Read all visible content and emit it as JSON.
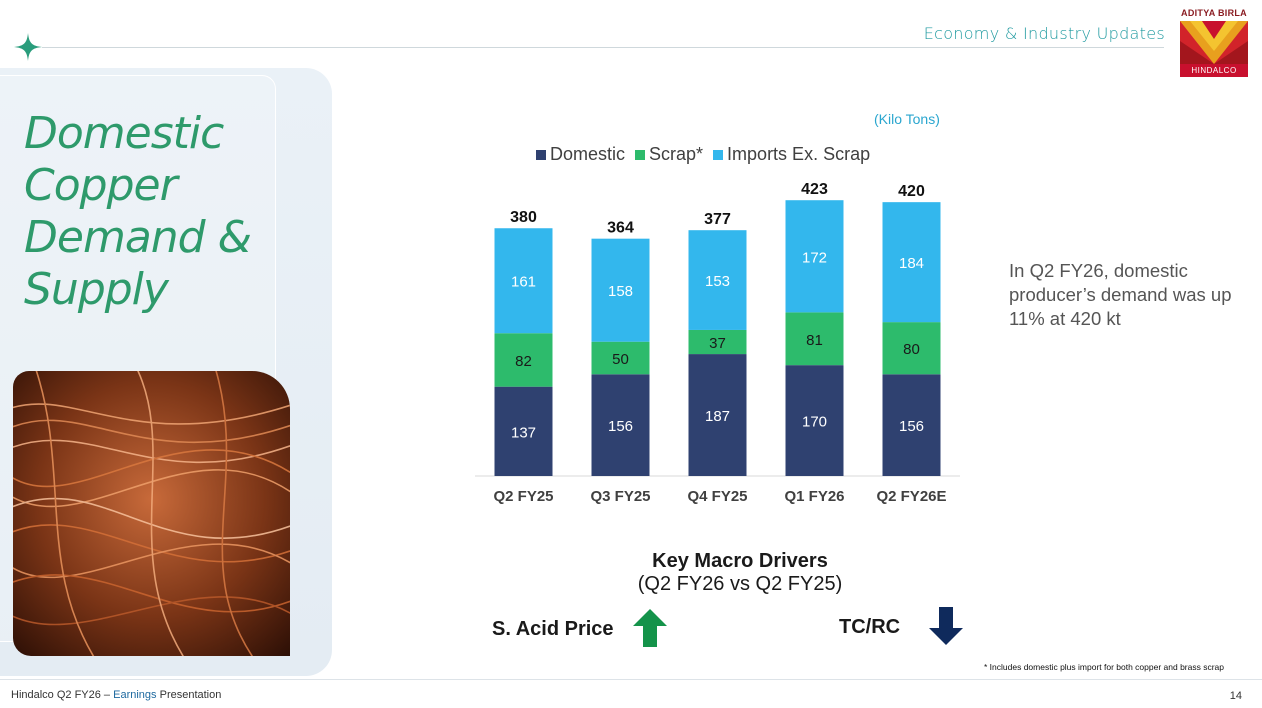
{
  "header": {
    "section_title": "Economy & Industry Updates",
    "logo_top": "ADITYA BIRLA",
    "logo_bottom": "HINDALCO"
  },
  "slide": {
    "title_lines": [
      "Domestic",
      "Copper",
      "Demand &",
      "Supply"
    ],
    "callout": "In Q2 FY26, domestic producer’s demand was up 11% at 420 kt"
  },
  "chart_data": {
    "type": "bar",
    "stacked": true,
    "unit_label": "(Kilo Tons)",
    "categories": [
      "Q2 FY25",
      "Q3 FY25",
      "Q4 FY25",
      "Q1 FY26",
      "Q2 FY26E"
    ],
    "series": [
      {
        "name": "Domestic",
        "color": "#2f4170",
        "values": [
          137,
          156,
          187,
          170,
          156
        ]
      },
      {
        "name": "Scrap*",
        "color": "#2dbb6c",
        "values": [
          82,
          50,
          37,
          81,
          80
        ]
      },
      {
        "name": "Imports Ex. Scrap",
        "color": "#33b7ed",
        "values": [
          161,
          158,
          153,
          172,
          184
        ]
      }
    ],
    "totals": [
      380,
      364,
      377,
      423,
      420
    ],
    "legend_position": "top",
    "ylim": [
      0,
      450
    ],
    "grid": false
  },
  "drivers": {
    "title": "Key Macro Drivers",
    "subtitle": "(Q2 FY26 vs Q2 FY25)",
    "items": [
      {
        "label": "S. Acid Price",
        "direction": "up",
        "color": "#14934a"
      },
      {
        "label": "TC/RC",
        "direction": "down",
        "color": "#0f2a5c"
      }
    ]
  },
  "footer": {
    "footnote": "* Includes domestic plus import for both copper and brass scrap",
    "left_prefix": "Hindalco Q2 FY26 – ",
    "left_accent": "Earnings",
    "left_suffix": " Presentation",
    "page_number": "14"
  }
}
